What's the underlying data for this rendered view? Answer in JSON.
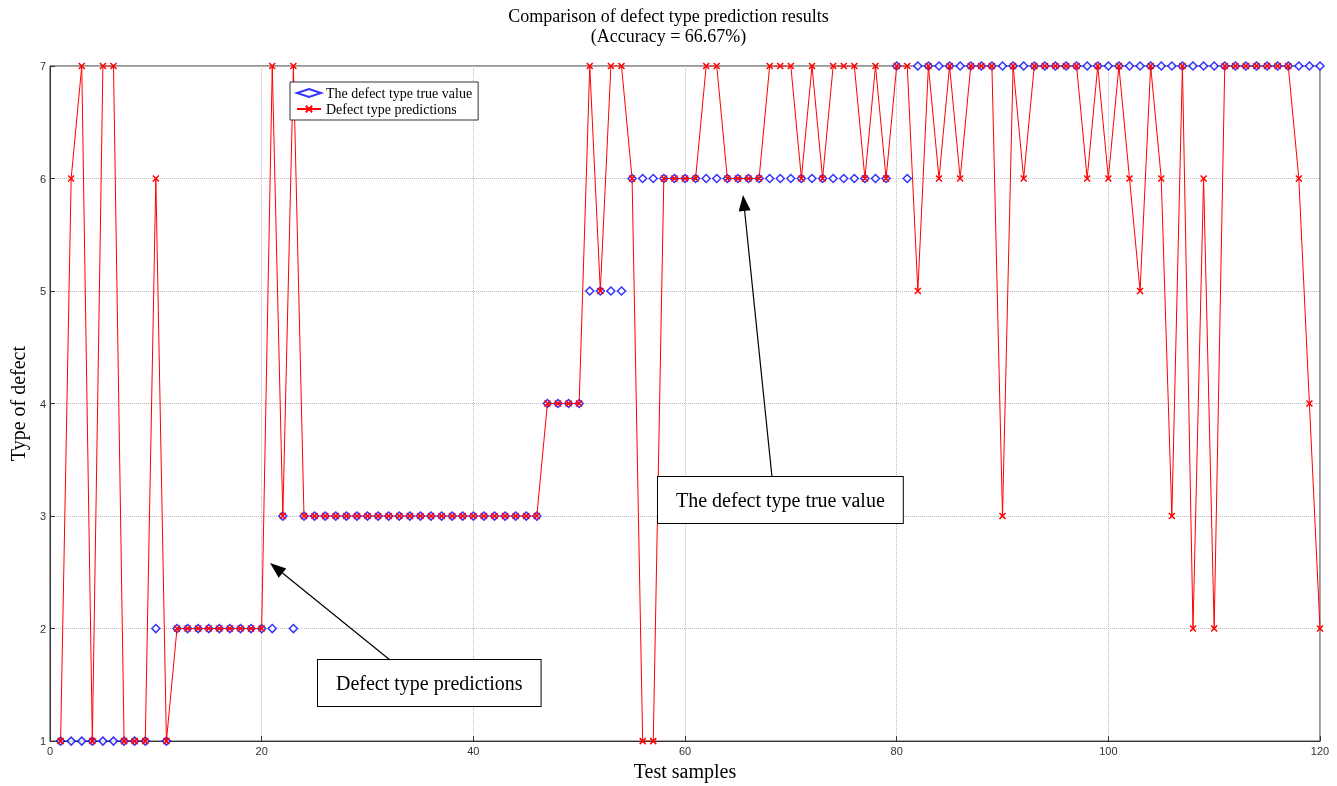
{
  "chart_data": {
    "type": "line",
    "title": "Comparison of defect type prediction results",
    "subtitle": "(Accuracy = 66.67%)",
    "xlabel": "Test samples",
    "ylabel": "Type of defect",
    "x": [
      1,
      2,
      3,
      4,
      5,
      6,
      7,
      8,
      9,
      10,
      11,
      12,
      13,
      14,
      15,
      16,
      17,
      18,
      19,
      20,
      21,
      22,
      23,
      24,
      25,
      26,
      27,
      28,
      29,
      30,
      31,
      32,
      33,
      34,
      35,
      36,
      37,
      38,
      39,
      40,
      41,
      42,
      43,
      44,
      45,
      46,
      47,
      48,
      49,
      50,
      51,
      52,
      53,
      54,
      55,
      56,
      57,
      58,
      59,
      60,
      61,
      62,
      63,
      64,
      65,
      66,
      67,
      68,
      69,
      70,
      71,
      72,
      73,
      74,
      75,
      76,
      77,
      78,
      79,
      80,
      81,
      82,
      83,
      84,
      85,
      86,
      87,
      88,
      89,
      90,
      91,
      92,
      93,
      94,
      95,
      96,
      97,
      98,
      99,
      100,
      101,
      102,
      103,
      104,
      105,
      106,
      107,
      108,
      109,
      110,
      111,
      112,
      113,
      114,
      115,
      116,
      117,
      118,
      119,
      120
    ],
    "series": [
      {
        "name": "The defect type true value",
        "type": "scatter",
        "marker": "diamond",
        "color": "#0000ff",
        "values": [
          1,
          1,
          1,
          1,
          1,
          1,
          1,
          1,
          1,
          2,
          1,
          2,
          2,
          2,
          2,
          2,
          2,
          2,
          2,
          2,
          2,
          3,
          2,
          3,
          3,
          3,
          3,
          3,
          3,
          3,
          3,
          3,
          3,
          3,
          3,
          3,
          3,
          3,
          3,
          3,
          3,
          3,
          3,
          3,
          3,
          3,
          4,
          4,
          4,
          4,
          5,
          5,
          5,
          5,
          6,
          6,
          6,
          6,
          6,
          6,
          6,
          6,
          6,
          6,
          6,
          6,
          6,
          6,
          6,
          6,
          6,
          6,
          6,
          6,
          6,
          6,
          6,
          6,
          6,
          7,
          6,
          7,
          7,
          7,
          7,
          7,
          7,
          7,
          7,
          7,
          7,
          7,
          7,
          7,
          7,
          7,
          7,
          7,
          7,
          7,
          7,
          7,
          7,
          7,
          7,
          7,
          7,
          7,
          7,
          7,
          7,
          7,
          7,
          7,
          7,
          7,
          7,
          7,
          7,
          7
        ]
      },
      {
        "name": "Defect type predictions",
        "marker": "cross",
        "color": "#ff0000",
        "values": [
          1,
          6,
          7,
          1,
          7,
          7,
          1,
          1,
          1,
          6,
          1,
          2,
          2,
          2,
          2,
          2,
          2,
          2,
          2,
          2,
          7,
          3,
          7,
          3,
          3,
          3,
          3,
          3,
          3,
          3,
          3,
          3,
          3,
          3,
          3,
          3,
          3,
          3,
          3,
          3,
          3,
          3,
          3,
          3,
          3,
          3,
          4,
          4,
          4,
          4,
          7,
          5,
          7,
          7,
          6,
          1,
          1,
          6,
          6,
          6,
          6,
          7,
          7,
          6,
          6,
          6,
          6,
          7,
          7,
          7,
          6,
          7,
          6,
          7,
          7,
          7,
          6,
          7,
          6,
          7,
          7,
          5,
          7,
          6,
          7,
          6,
          7,
          7,
          7,
          3,
          7,
          6,
          7,
          7,
          7,
          7,
          7,
          6,
          7,
          6,
          7,
          6,
          5,
          7,
          6,
          3,
          7,
          2,
          6,
          2,
          7,
          7,
          7,
          7,
          7,
          7,
          7,
          6,
          4,
          2
        ]
      }
    ],
    "xlim": [
      0,
      120
    ],
    "xticks": [
      0,
      20,
      40,
      60,
      80,
      100,
      120
    ],
    "ylim": [
      1,
      7
    ],
    "yticks": [
      1,
      2,
      3,
      4,
      5,
      6,
      7
    ],
    "grid": true,
    "legend": "top left",
    "line_style": "solid",
    "annotations": [
      "Defect type predictions",
      "The defect type true value"
    ]
  }
}
